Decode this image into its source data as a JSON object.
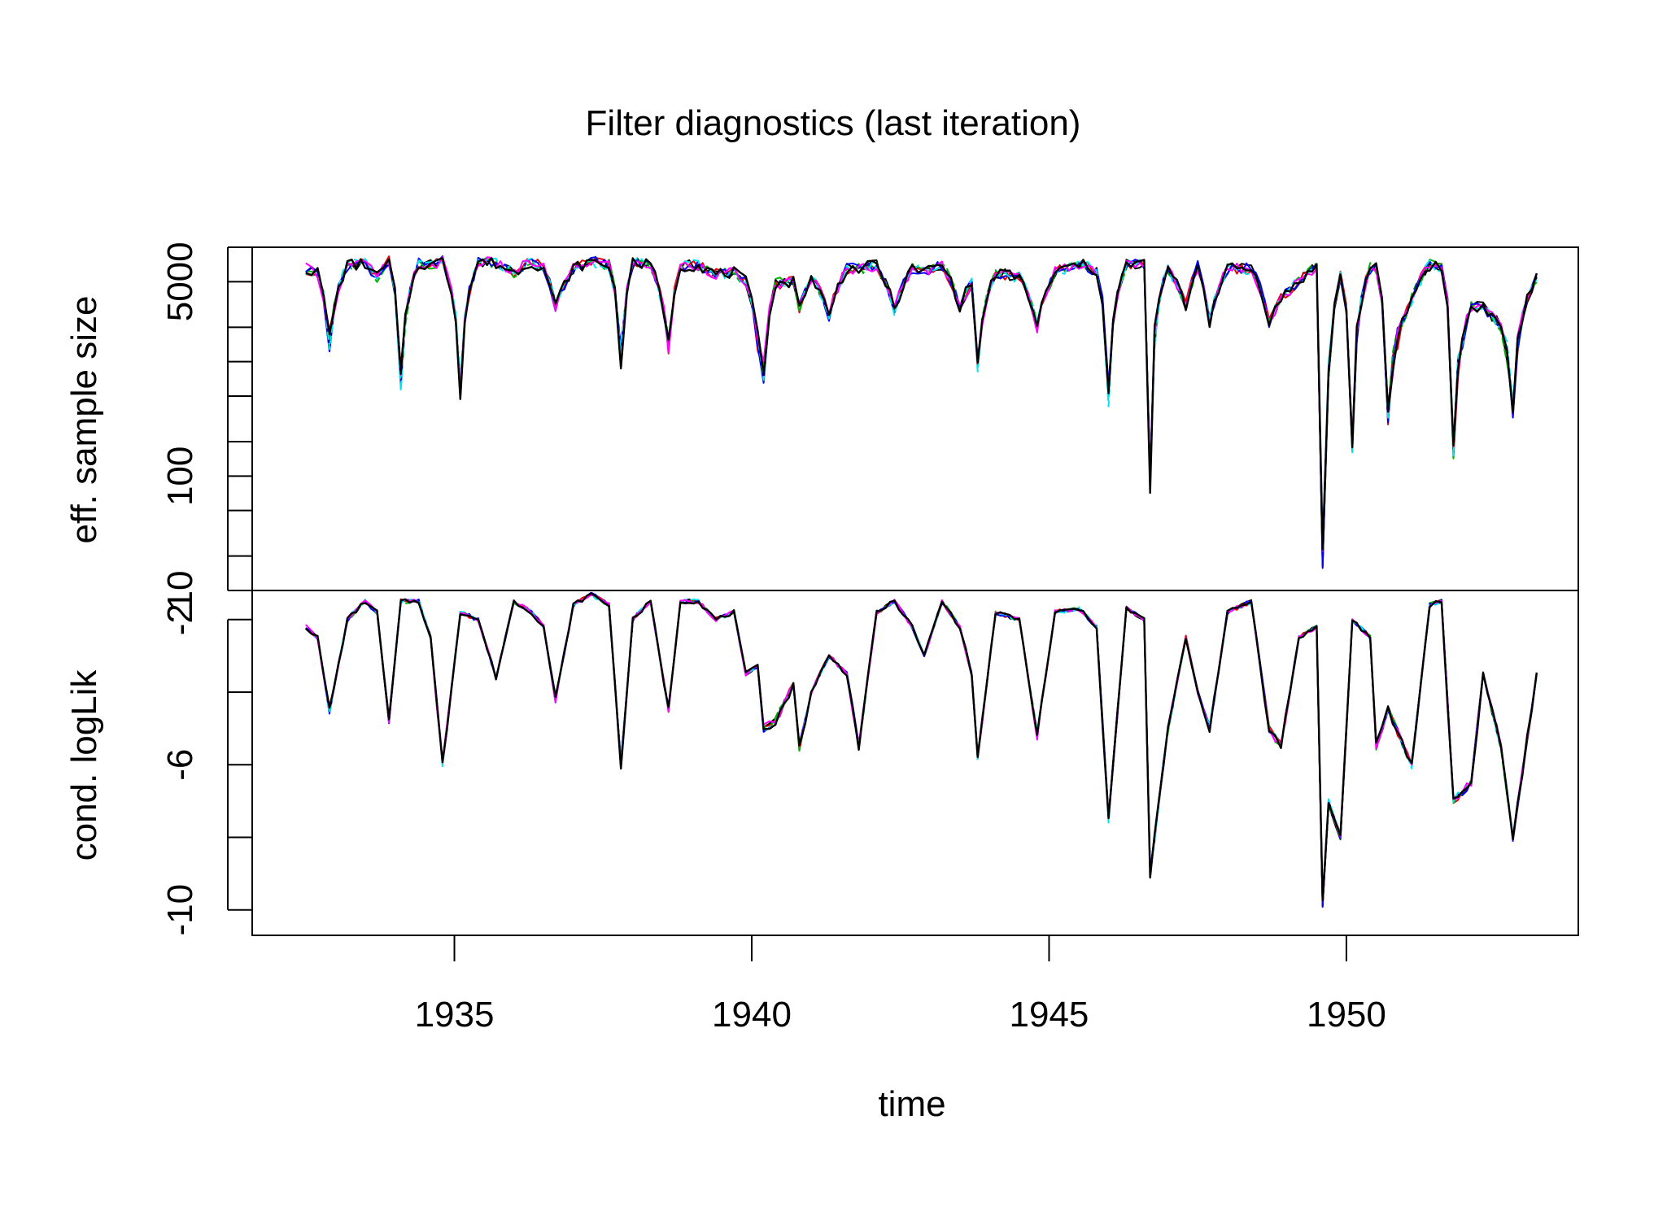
{
  "chart_data": {
    "type": "line",
    "title": "Filter diagnostics (last iteration)",
    "xlabel": "time",
    "x_ticks": [
      "1935",
      "1940",
      "1945",
      "1950"
    ],
    "xlim": [
      1931.6,
      1953.9
    ],
    "panels": [
      {
        "ylabel": "eff. sample size",
        "y_scale": "log",
        "ylim": [
          10,
          10000
        ],
        "y_tick_labels": [
          "10",
          "100",
          "5000"
        ],
        "y_ticks_all": [
          10,
          20,
          50,
          100,
          200,
          500,
          1000,
          2000,
          5000,
          10000
        ]
      },
      {
        "ylabel": "cond. logLik",
        "y_scale": "linear",
        "ylim": [
          -10.7,
          -1.2
        ],
        "y_tick_labels": [
          "-10",
          "-6",
          "-2"
        ],
        "y_ticks_all": [
          -10,
          -8,
          -6,
          -4,
          -2
        ]
      }
    ],
    "series_colors": [
      "#000000",
      "#e8000b",
      "#00b300",
      "#0000ff",
      "#00e5ee",
      "#ff00ff",
      "#000000"
    ],
    "ess_anchors": {
      "x": [
        1932.5,
        1932.7,
        1932.9,
        1933.2,
        1933.5,
        1933.7,
        1933.9,
        1934.1,
        1934.4,
        1934.6,
        1934.8,
        1935.1,
        1935.4,
        1935.7,
        1936.0,
        1936.3,
        1936.5,
        1936.7,
        1937.0,
        1937.3,
        1937.6,
        1937.8,
        1938.0,
        1938.3,
        1938.6,
        1938.8,
        1939.1,
        1939.4,
        1939.7,
        1939.9,
        1940.1,
        1940.2,
        1940.4,
        1940.7,
        1940.8,
        1941.0,
        1941.3,
        1941.6,
        1941.8,
        1942.1,
        1942.4,
        1942.7,
        1942.9,
        1943.2,
        1943.5,
        1943.7,
        1943.8,
        1944.1,
        1944.5,
        1944.8,
        1945.1,
        1945.5,
        1945.8,
        1946.0,
        1946.3,
        1946.6,
        1946.7,
        1947.0,
        1947.3,
        1947.5,
        1947.7,
        1948.0,
        1948.4,
        1948.7,
        1948.9,
        1949.2,
        1949.5,
        1949.6,
        1949.7,
        1949.9,
        1950.1,
        1950.4,
        1950.5,
        1950.7,
        1951.1,
        1951.4,
        1951.6,
        1951.8,
        1952.1,
        1952.3,
        1952.6,
        1952.8,
        1953.2
      ],
      "y": [
        6500,
        6000,
        1500,
        7000,
        7200,
        5500,
        7500,
        700,
        7200,
        7000,
        7500,
        600,
        7500,
        7200,
        6000,
        7500,
        6500,
        3000,
        6500,
        7500,
        7000,
        1100,
        7200,
        7000,
        1300,
        6800,
        7000,
        5800,
        6000,
        5000,
        1500,
        800,
        4800,
        5000,
        3000,
        5500,
        2500,
        6500,
        6500,
        7000,
        2800,
        6500,
        6200,
        7000,
        3000,
        5000,
        950,
        6000,
        5500,
        2000,
        6000,
        7200,
        6200,
        500,
        7000,
        7200,
        90,
        6500,
        3000,
        6800,
        2200,
        6500,
        6500,
        2200,
        3500,
        5000,
        6800,
        20,
        900,
        5500,
        200,
        6500,
        6500,
        300,
        3500,
        7000,
        6500,
        160,
        3000,
        3000,
        2000,
        400,
        5500
      ],
      "spread": 0.1
    },
    "loglik_anchors": {
      "x": [
        1932.5,
        1932.7,
        1932.9,
        1933.2,
        1933.5,
        1933.7,
        1933.9,
        1934.1,
        1934.4,
        1934.6,
        1934.8,
        1935.1,
        1935.4,
        1935.7,
        1936.0,
        1936.3,
        1936.5,
        1936.7,
        1937.0,
        1937.3,
        1937.6,
        1937.8,
        1938.0,
        1938.3,
        1938.6,
        1938.8,
        1939.1,
        1939.4,
        1939.7,
        1939.9,
        1940.1,
        1940.2,
        1940.4,
        1940.7,
        1940.8,
        1941.0,
        1941.3,
        1941.6,
        1941.8,
        1942.1,
        1942.4,
        1942.7,
        1942.9,
        1943.2,
        1943.5,
        1943.7,
        1943.8,
        1944.1,
        1944.5,
        1944.8,
        1945.1,
        1945.5,
        1945.8,
        1946.0,
        1946.3,
        1946.6,
        1946.7,
        1947.0,
        1947.3,
        1947.5,
        1947.7,
        1948.0,
        1948.4,
        1948.7,
        1948.9,
        1949.2,
        1949.5,
        1949.6,
        1949.7,
        1949.9,
        1950.1,
        1950.4,
        1950.5,
        1950.7,
        1951.1,
        1951.4,
        1951.6,
        1951.8,
        1952.1,
        1952.3,
        1952.6,
        1952.8,
        1953.2
      ],
      "y": [
        -2.2,
        -2.5,
        -4.5,
        -2.0,
        -1.5,
        -1.8,
        -4.8,
        -1.5,
        -1.5,
        -2.5,
        -6.0,
        -1.8,
        -2.0,
        -3.6,
        -1.5,
        -1.8,
        -2.2,
        -4.2,
        -1.6,
        -1.3,
        -1.6,
        -6.0,
        -2.0,
        -1.5,
        -4.5,
        -1.5,
        -1.5,
        -2.0,
        -1.8,
        -3.5,
        -3.3,
        -5.0,
        -4.8,
        -3.8,
        -5.5,
        -4.0,
        -3.0,
        -3.5,
        -5.5,
        -1.8,
        -1.5,
        -2.2,
        -3.0,
        -1.5,
        -2.2,
        -3.5,
        -5.8,
        -1.8,
        -2.0,
        -5.2,
        -1.8,
        -1.7,
        -2.2,
        -7.5,
        -1.7,
        -2.0,
        -9.0,
        -5.0,
        -2.5,
        -4.0,
        -5.0,
        -1.8,
        -1.5,
        -5.0,
        -5.5,
        -2.5,
        -2.2,
        -9.8,
        -7.0,
        -8.0,
        -2.0,
        -2.5,
        -5.5,
        -4.5,
        -6.0,
        -1.6,
        -1.5,
        -7.0,
        -6.5,
        -3.5,
        -5.5,
        -8.0,
        -3.5
      ],
      "spread": 0.12
    }
  }
}
